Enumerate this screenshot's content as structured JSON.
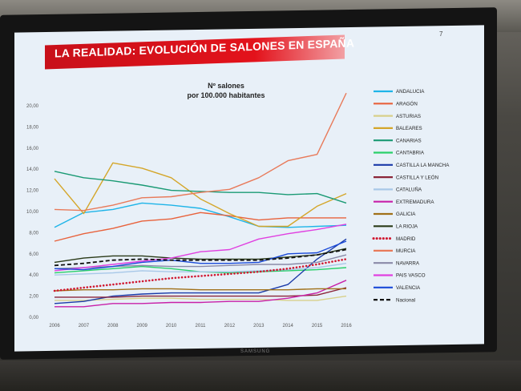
{
  "slide": {
    "number": "7",
    "title": "LA REALIDAD: EVOLUCIÓN DE SALONES EN ESPAÑA",
    "brand": "SAMSUNG"
  },
  "chart_data": {
    "type": "line",
    "title": "Nº salones",
    "subtitle": "por 100.000 habitantes",
    "x": [
      "2006",
      "2007",
      "2008",
      "2009",
      "2010",
      "2011",
      "2012",
      "2013",
      "2014",
      "2015",
      "2016"
    ],
    "ylim": [
      0,
      20
    ],
    "yticks": [
      "0,00",
      "2,00",
      "4,00",
      "6,00",
      "8,00",
      "10,00",
      "12,00",
      "14,00",
      "16,00",
      "18,00",
      "20,00"
    ],
    "grid": false,
    "legend_position": "right",
    "series": [
      {
        "name": "ANDALUCIA",
        "color": "#1eb4e8",
        "dash": "solid",
        "values": [
          8.5,
          9.9,
          10.2,
          10.8,
          10.6,
          10.3,
          9.5,
          8.6,
          8.5,
          8.6,
          8.7
        ]
      },
      {
        "name": "ARAGÓN",
        "color": "#e8623c",
        "dash": "solid",
        "values": [
          7.2,
          7.9,
          8.4,
          9.1,
          9.3,
          9.9,
          9.6,
          9.2,
          9.4,
          9.4,
          9.4
        ]
      },
      {
        "name": "ASTURIAS",
        "color": "#d8d08a",
        "dash": "solid",
        "values": [
          1.6,
          1.6,
          1.7,
          1.8,
          1.8,
          1.7,
          1.7,
          1.7,
          1.6,
          1.6,
          2.0
        ]
      },
      {
        "name": "BALEARES",
        "color": "#d4a62a",
        "dash": "solid",
        "values": [
          13.1,
          9.8,
          14.6,
          14.1,
          13.2,
          11.2,
          9.8,
          8.6,
          8.6,
          10.5,
          11.7
        ]
      },
      {
        "name": "CANARIAS",
        "color": "#1a9a74",
        "dash": "solid",
        "values": [
          13.8,
          13.2,
          12.9,
          12.5,
          12.0,
          11.9,
          11.8,
          11.8,
          11.6,
          11.7,
          10.8
        ]
      },
      {
        "name": "CANTABRIA",
        "color": "#2ad06a",
        "dash": "solid",
        "values": [
          4.2,
          4.4,
          4.6,
          4.8,
          4.6,
          4.3,
          4.2,
          4.3,
          4.4,
          4.5,
          4.7
        ]
      },
      {
        "name": "CASTILLA LA MANCHA",
        "color": "#1a3aa8",
        "dash": "solid",
        "values": [
          1.3,
          1.5,
          2.0,
          2.2,
          2.3,
          2.3,
          2.3,
          2.3,
          3.1,
          5.5,
          7.4
        ]
      },
      {
        "name": "CASTILLA Y LEÓN",
        "color": "#8a2438",
        "dash": "solid",
        "values": [
          1.9,
          1.9,
          1.9,
          2.0,
          2.0,
          2.0,
          2.0,
          2.0,
          2.0,
          2.1,
          2.8
        ]
      },
      {
        "name": "CATALUÑA",
        "color": "#a8c8e8",
        "dash": "solid",
        "values": [
          4.0,
          4.1,
          4.2,
          4.4,
          4.3,
          4.3,
          4.3,
          4.4,
          4.5,
          4.7,
          5.1
        ]
      },
      {
        "name": "EXTREMADURA",
        "color": "#c820a8",
        "dash": "solid",
        "values": [
          1.0,
          1.0,
          1.3,
          1.3,
          1.4,
          1.4,
          1.5,
          1.5,
          1.8,
          2.3,
          3.5
        ]
      },
      {
        "name": "GALICIA",
        "color": "#a07018",
        "dash": "solid",
        "values": [
          2.5,
          2.6,
          2.6,
          2.7,
          2.7,
          2.6,
          2.6,
          2.6,
          2.6,
          2.7,
          2.7
        ]
      },
      {
        "name": "LA RIOJA",
        "color": "#2a3a18",
        "dash": "solid",
        "values": [
          5.2,
          5.6,
          5.8,
          5.8,
          5.6,
          5.5,
          5.5,
          5.5,
          5.7,
          5.9,
          6.5
        ]
      },
      {
        "name": "MADRID",
        "color": "#d01830",
        "dash": "dot",
        "values": [
          2.5,
          2.8,
          3.1,
          3.4,
          3.7,
          3.9,
          4.1,
          4.3,
          4.6,
          5.0,
          5.5
        ]
      },
      {
        "name": "MURCIA",
        "color": "#e87a5a",
        "dash": "solid",
        "values": [
          10.2,
          10.1,
          10.6,
          11.3,
          11.4,
          11.8,
          12.1,
          13.2,
          14.8,
          15.4,
          21.2
        ]
      },
      {
        "name": "NAVARRA",
        "color": "#8a8aa8",
        "dash": "solid",
        "values": [
          4.6,
          4.7,
          4.8,
          4.9,
          4.8,
          4.8,
          4.9,
          5.0,
          5.0,
          5.2,
          5.9
        ]
      },
      {
        "name": "PAIS VASCO",
        "color": "#e040e0",
        "dash": "solid",
        "values": [
          4.4,
          4.7,
          5.0,
          5.3,
          5.6,
          6.2,
          6.4,
          7.4,
          7.9,
          8.3,
          8.8
        ]
      },
      {
        "name": "VALENCIA",
        "color": "#1a4ad8",
        "dash": "solid",
        "values": [
          4.6,
          4.5,
          4.8,
          5.2,
          5.4,
          5.1,
          5.1,
          5.2,
          6.0,
          6.1,
          7.2
        ]
      },
      {
        "name": "Nacional",
        "color": "#111111",
        "dash": "dash",
        "values": [
          4.9,
          5.1,
          5.4,
          5.5,
          5.4,
          5.4,
          5.4,
          5.4,
          5.6,
          5.9,
          6.4
        ]
      }
    ]
  }
}
